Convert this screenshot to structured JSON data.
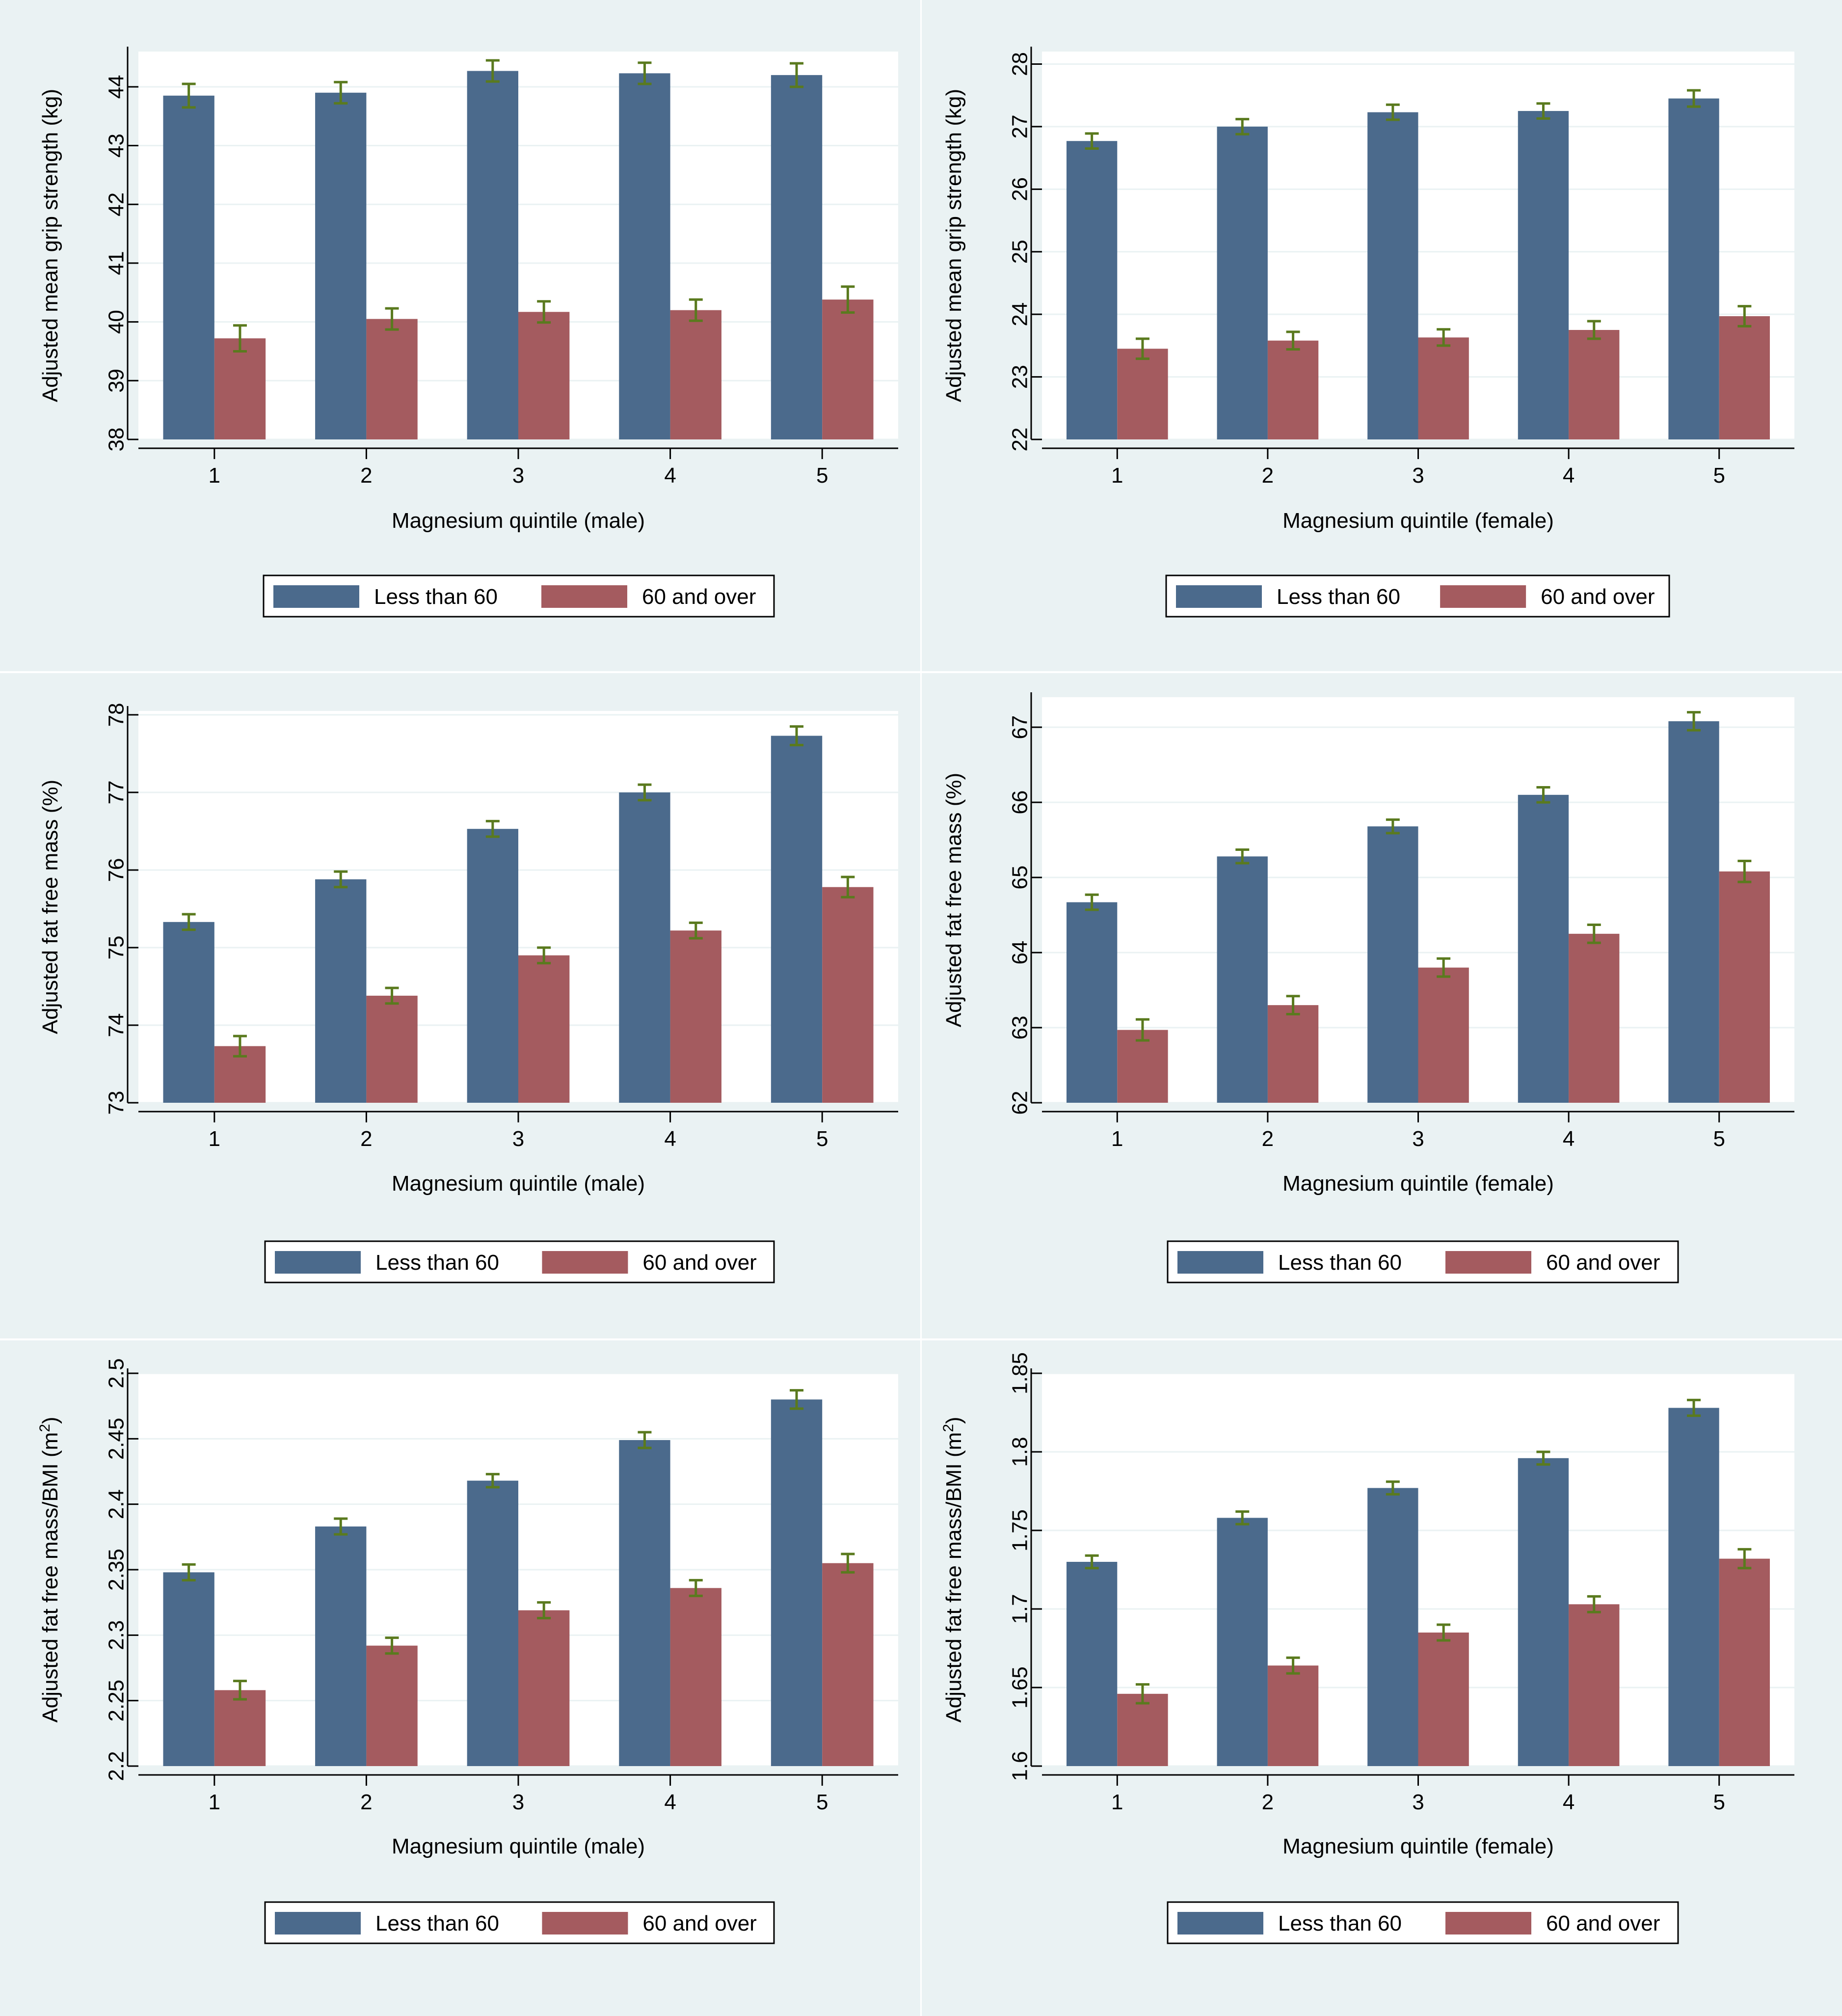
{
  "figure": {
    "series_names": [
      "Less than 60",
      "60 and over"
    ],
    "colors": {
      "under60": "#4b6a8c",
      "over60": "#a45b5f",
      "error_bar": "#5a7a1e",
      "panel_bg": "#eaf2f3"
    }
  },
  "chart_data": [
    {
      "type": "bar",
      "panel": "top-left",
      "xlabel": "Magnesium quintile (male)",
      "ylabel": "Adjusted mean grip strength (kg)",
      "categories": [
        "1",
        "2",
        "3",
        "4",
        "5"
      ],
      "ylim": [
        38,
        44.6
      ],
      "yticks": [
        38,
        39,
        40,
        41,
        42,
        43,
        44
      ],
      "ytick_labels": [
        "38",
        "39",
        "40",
        "41",
        "42",
        "43",
        "44"
      ],
      "series": [
        {
          "name": "Less than 60",
          "values": [
            43.85,
            43.9,
            44.27,
            44.23,
            44.2
          ],
          "err": [
            0.2,
            0.18,
            0.18,
            0.18,
            0.2
          ]
        },
        {
          "name": "60 and over",
          "values": [
            39.72,
            40.05,
            40.17,
            40.2,
            40.38
          ],
          "err": [
            0.22,
            0.18,
            0.18,
            0.18,
            0.22
          ]
        }
      ],
      "legend": "bottom"
    },
    {
      "type": "bar",
      "panel": "top-right",
      "xlabel": "Magnesium quintile (female)",
      "ylabel": "Adjusted mean grip strength (kg)",
      "categories": [
        "1",
        "2",
        "3",
        "4",
        "5"
      ],
      "ylim": [
        22,
        28.2
      ],
      "yticks": [
        22,
        23,
        24,
        25,
        26,
        27,
        28
      ],
      "ytick_labels": [
        "22",
        "23",
        "24",
        "25",
        "26",
        "27",
        "28"
      ],
      "series": [
        {
          "name": "Less than 60",
          "values": [
            26.77,
            27.0,
            27.23,
            27.25,
            27.45
          ],
          "err": [
            0.12,
            0.12,
            0.12,
            0.12,
            0.13
          ]
        },
        {
          "name": "60 and over",
          "values": [
            23.45,
            23.58,
            23.63,
            23.75,
            23.97
          ],
          "err": [
            0.16,
            0.14,
            0.13,
            0.14,
            0.16
          ]
        }
      ],
      "legend": "bottom"
    },
    {
      "type": "bar",
      "panel": "middle-left",
      "xlabel": "Magnesium quintile (male)",
      "ylabel": "Adjusted fat free mass (%)",
      "categories": [
        "1",
        "2",
        "3",
        "4",
        "5"
      ],
      "ylim": [
        73,
        78.05
      ],
      "yticks": [
        73,
        74,
        75,
        76,
        77,
        78
      ],
      "ytick_labels": [
        "73",
        "74",
        "75",
        "76",
        "77",
        "78"
      ],
      "series": [
        {
          "name": "Less than 60",
          "values": [
            75.33,
            75.88,
            76.53,
            77.0,
            77.73
          ],
          "err": [
            0.1,
            0.1,
            0.1,
            0.1,
            0.12
          ]
        },
        {
          "name": "60 and over",
          "values": [
            73.73,
            74.38,
            74.9,
            75.22,
            75.78
          ],
          "err": [
            0.13,
            0.1,
            0.1,
            0.1,
            0.13
          ]
        }
      ],
      "legend": "bottom"
    },
    {
      "type": "bar",
      "panel": "middle-right",
      "xlabel": "Magnesium quintile (female)",
      "ylabel": "Adjusted fat free mass (%)",
      "categories": [
        "1",
        "2",
        "3",
        "4",
        "5"
      ],
      "ylim": [
        62,
        67.4
      ],
      "yticks": [
        62,
        63,
        64,
        65,
        66,
        67
      ],
      "ytick_labels": [
        "62",
        "63",
        "64",
        "65",
        "66",
        "67"
      ],
      "series": [
        {
          "name": "Less than 60",
          "values": [
            64.67,
            65.28,
            65.68,
            66.1,
            67.08
          ],
          "err": [
            0.1,
            0.09,
            0.09,
            0.1,
            0.12
          ]
        },
        {
          "name": "60 and over",
          "values": [
            62.97,
            63.3,
            63.8,
            64.25,
            65.08
          ],
          "err": [
            0.14,
            0.12,
            0.12,
            0.12,
            0.14
          ]
        }
      ],
      "legend": "bottom"
    },
    {
      "type": "bar",
      "panel": "bottom-left",
      "xlabel": "Magnesium quintile (male)",
      "ylabel_main": "Adjusted fat free mass/BMI (m",
      "ylabel_sup": "2",
      "ylabel_end": ")",
      "categories": [
        "1",
        "2",
        "3",
        "4",
        "5"
      ],
      "ylim": [
        2.2,
        2.5
      ],
      "yticks": [
        2.2,
        2.25,
        2.3,
        2.35,
        2.4,
        2.45,
        2.5
      ],
      "ytick_labels": [
        "2.2",
        "2.25",
        "2.3",
        "2.35",
        "2.4",
        "2.45",
        "2.5"
      ],
      "series": [
        {
          "name": "Less than 60",
          "values": [
            2.348,
            2.383,
            2.418,
            2.449,
            2.48
          ],
          "err": [
            0.006,
            0.006,
            0.005,
            0.006,
            0.007
          ]
        },
        {
          "name": "60 and over",
          "values": [
            2.258,
            2.292,
            2.319,
            2.336,
            2.355
          ],
          "err": [
            0.007,
            0.006,
            0.006,
            0.006,
            0.007
          ]
        }
      ],
      "legend": "bottom"
    },
    {
      "type": "bar",
      "panel": "bottom-right",
      "xlabel": "Magnesium quintile (female)",
      "ylabel_main": "Adjusted fat free mass/BMI (m",
      "ylabel_sup": "2",
      "ylabel_end": ")",
      "categories": [
        "1",
        "2",
        "3",
        "4",
        "5"
      ],
      "ylim": [
        1.6,
        1.85
      ],
      "yticks": [
        1.6,
        1.65,
        1.7,
        1.75,
        1.8,
        1.85
      ],
      "ytick_labels": [
        "1.6",
        "1.65",
        "1.7",
        "1.75",
        "1.8",
        "1.85"
      ],
      "series": [
        {
          "name": "Less than 60",
          "values": [
            1.73,
            1.758,
            1.777,
            1.796,
            1.828
          ],
          "err": [
            0.004,
            0.004,
            0.004,
            0.004,
            0.005
          ]
        },
        {
          "name": "60 and over",
          "values": [
            1.646,
            1.664,
            1.685,
            1.703,
            1.732
          ],
          "err": [
            0.006,
            0.005,
            0.005,
            0.005,
            0.006
          ]
        }
      ],
      "legend": "bottom"
    }
  ]
}
